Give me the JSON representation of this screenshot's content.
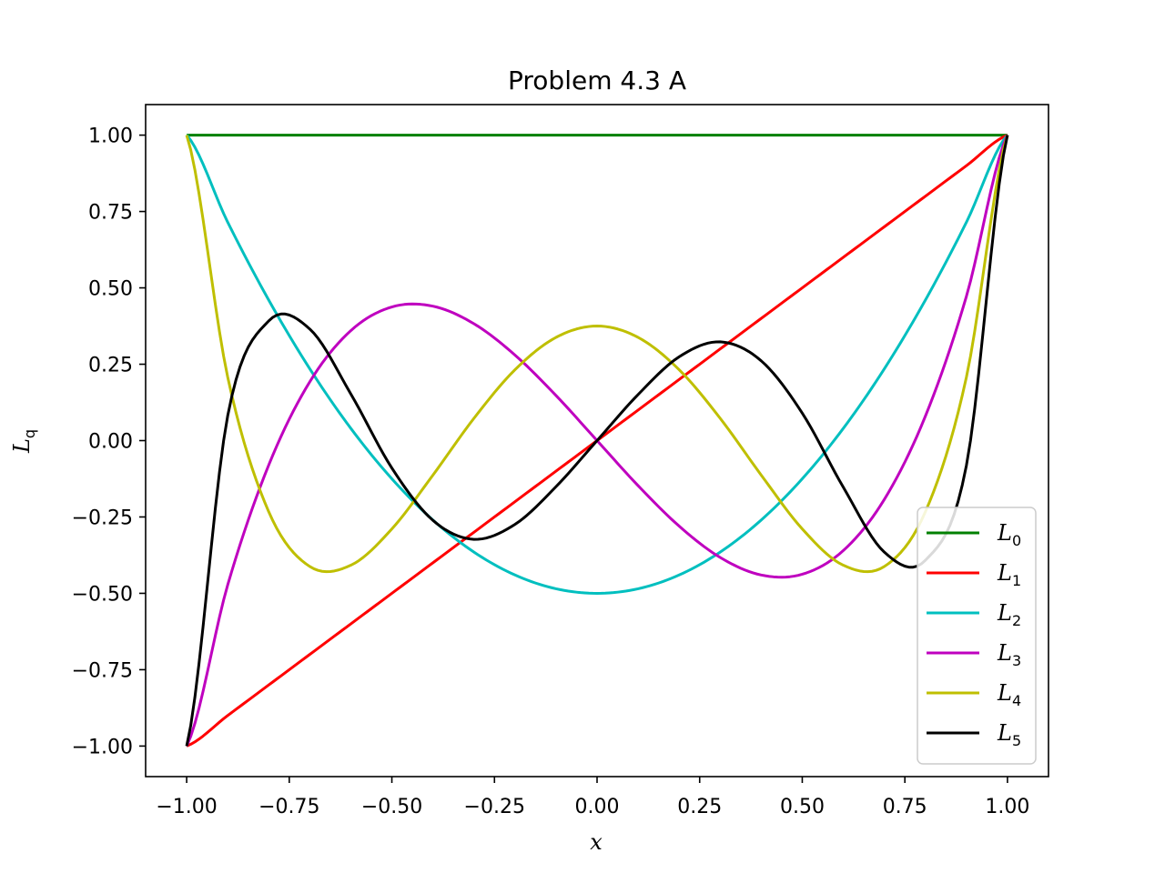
{
  "chart_data": {
    "type": "line",
    "title": "Problem 4.3 A",
    "xlabel": "x",
    "ylabel": {
      "base": "L",
      "sub": "q"
    },
    "xlim": [
      -1.1,
      1.1
    ],
    "ylim": [
      -1.1,
      1.1
    ],
    "xticks": [
      -1.0,
      -0.75,
      -0.5,
      -0.25,
      0.0,
      0.25,
      0.5,
      0.75,
      1.0
    ],
    "xtick_labels": [
      "−1.00",
      "−0.75",
      "−0.50",
      "−0.25",
      "0.00",
      "0.25",
      "0.50",
      "0.75",
      "1.00"
    ],
    "yticks": [
      1.0,
      0.75,
      0.5,
      0.25,
      0.0,
      -0.25,
      -0.5,
      -0.75,
      -1.0
    ],
    "ytick_labels": [
      "1.00",
      "0.75",
      "0.50",
      "0.25",
      "0.00",
      "−0.25",
      "−0.50",
      "−0.75",
      "−1.00"
    ],
    "grid": false,
    "legend_position": "lower-right",
    "x": [
      -1.0,
      -0.9,
      -0.8,
      -0.7,
      -0.6,
      -0.5,
      -0.4,
      -0.3,
      -0.2,
      -0.1,
      0.0,
      0.1,
      0.2,
      0.3,
      0.4,
      0.5,
      0.6,
      0.7,
      0.8,
      0.9,
      1.0
    ],
    "series": [
      {
        "name": "L0",
        "label_base": "L",
        "label_sub": "0",
        "color": "#008000",
        "values": [
          1,
          1,
          1,
          1,
          1,
          1,
          1,
          1,
          1,
          1,
          1,
          1,
          1,
          1,
          1,
          1,
          1,
          1,
          1,
          1,
          1
        ]
      },
      {
        "name": "L1",
        "label_base": "L",
        "label_sub": "1",
        "color": "#ff0000",
        "values": [
          -1.0,
          -0.9,
          -0.8,
          -0.7,
          -0.6,
          -0.5,
          -0.4,
          -0.3,
          -0.2,
          -0.1,
          0.0,
          0.1,
          0.2,
          0.3,
          0.4,
          0.5,
          0.6,
          0.7,
          0.8,
          0.9,
          1.0
        ]
      },
      {
        "name": "L2",
        "label_base": "L",
        "label_sub": "2",
        "color": "#00bfbf",
        "values": [
          1.0,
          0.715,
          0.46,
          0.235,
          0.04,
          -0.125,
          -0.26,
          -0.365,
          -0.44,
          -0.485,
          -0.5,
          -0.485,
          -0.44,
          -0.365,
          -0.26,
          -0.125,
          0.04,
          0.235,
          0.46,
          0.715,
          1.0
        ]
      },
      {
        "name": "L3",
        "label_base": "L",
        "label_sub": "3",
        "color": "#bf00bf",
        "values": [
          -1.0,
          -0.4725,
          -0.08,
          0.1925,
          0.36,
          0.4375,
          0.44,
          0.3825,
          0.28,
          0.1475,
          0.0,
          -0.1475,
          -0.28,
          -0.3825,
          -0.44,
          -0.4375,
          -0.36,
          -0.1925,
          0.08,
          0.4725,
          1.0
        ]
      },
      {
        "name": "L4",
        "label_base": "L",
        "label_sub": "4",
        "color": "#bfbf00",
        "values": [
          1.0,
          0.2079,
          -0.233,
          -0.4121,
          -0.408,
          -0.2891,
          -0.113,
          0.0729,
          0.232,
          0.3379,
          0.375,
          0.3379,
          0.232,
          0.0729,
          -0.113,
          -0.2891,
          -0.408,
          -0.4121,
          -0.233,
          0.2079,
          1.0
        ]
      },
      {
        "name": "L5",
        "label_base": "L",
        "label_sub": "5",
        "color": "#000000",
        "values": [
          -1.0,
          0.0812,
          0.3918,
          0.3652,
          0.1526,
          -0.0898,
          -0.2611,
          -0.3232,
          -0.2742,
          -0.1507,
          0.0,
          0.1507,
          0.2742,
          0.3232,
          0.2611,
          0.0898,
          -0.1526,
          -0.3652,
          -0.3918,
          -0.0812,
          1.0
        ]
      }
    ]
  }
}
